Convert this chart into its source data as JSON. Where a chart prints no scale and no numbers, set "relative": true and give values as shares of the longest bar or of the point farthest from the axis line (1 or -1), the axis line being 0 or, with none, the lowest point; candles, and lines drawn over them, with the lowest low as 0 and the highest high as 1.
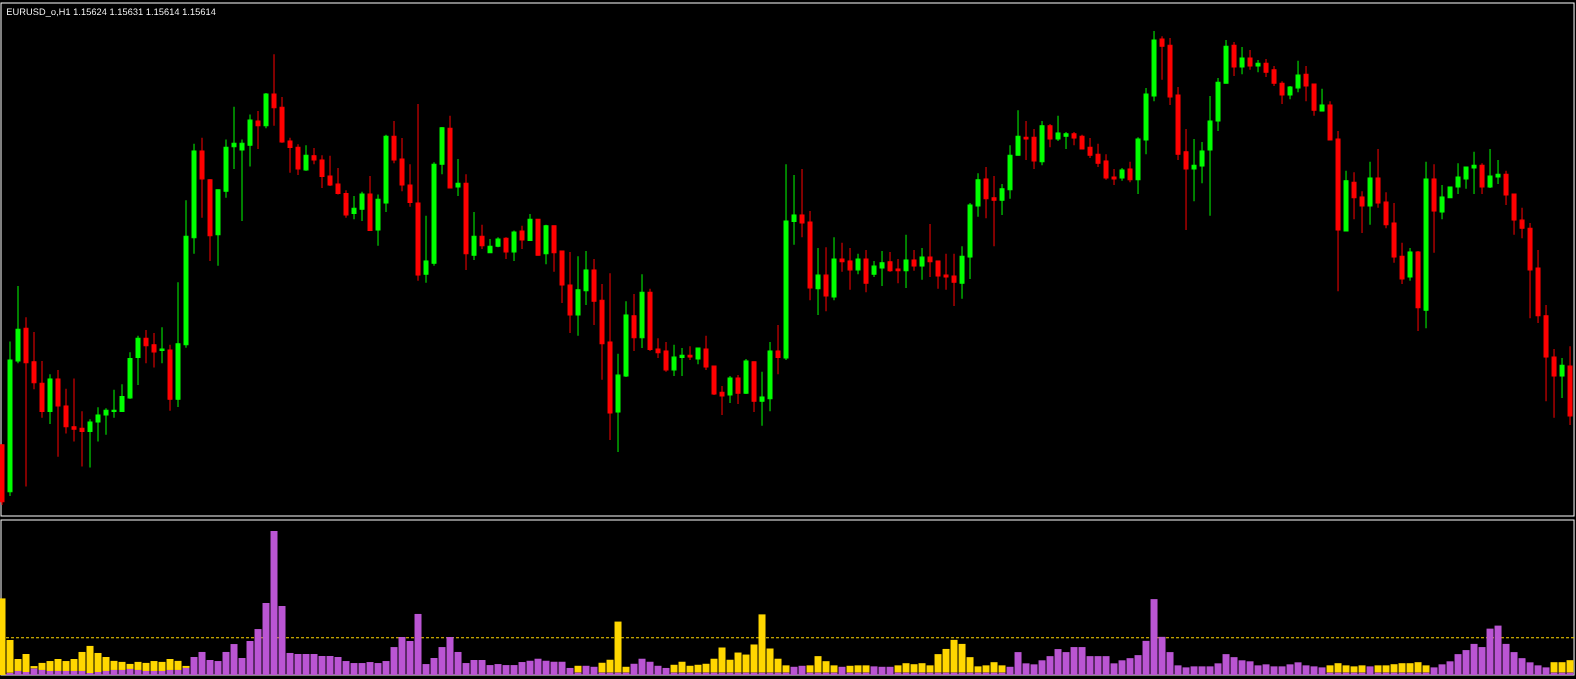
{
  "chart_data": [
    {
      "type": "candlestick",
      "title": "EURUSD_o,H1 1.15624 1.15631 1.15614 1.15614",
      "relative": true,
      "categories": [
        null,
        null,
        null,
        null,
        null,
        null,
        null,
        null,
        null,
        null,
        null,
        null,
        null,
        null,
        null,
        null,
        null,
        null,
        null,
        null,
        null,
        null,
        null,
        null,
        null,
        null,
        null,
        null,
        null,
        null,
        null,
        null,
        null,
        null,
        null,
        null,
        null,
        null,
        null,
        null,
        null,
        null,
        null,
        null,
        null,
        null,
        null,
        null,
        null,
        null,
        null,
        null,
        null,
        null,
        null,
        null,
        null,
        null,
        null,
        null,
        null,
        null,
        null,
        null,
        null,
        null,
        null,
        null,
        null,
        null,
        null,
        null,
        null,
        null,
        null,
        null,
        null,
        null,
        null,
        null,
        null,
        null,
        null,
        null,
        null,
        null,
        null,
        null,
        null,
        null,
        null,
        null,
        null,
        null,
        null,
        null,
        null,
        null,
        null,
        null,
        null,
        null,
        null,
        null,
        null,
        null,
        null,
        null,
        null,
        null,
        null,
        null,
        null,
        null,
        null,
        null,
        null,
        null,
        null,
        null,
        null,
        null,
        null,
        null,
        null,
        null,
        null,
        null,
        null,
        null,
        null,
        null,
        null,
        null,
        null,
        null,
        null,
        null,
        null,
        null,
        null,
        null,
        null,
        null,
        null,
        null,
        null,
        null,
        null,
        null,
        null,
        null,
        null,
        null,
        null,
        null,
        null,
        null,
        null,
        null,
        null,
        null,
        null,
        null,
        null,
        null,
        null,
        null,
        null,
        null,
        null,
        null,
        null,
        null,
        null,
        null,
        null,
        null,
        null,
        null,
        null,
        null,
        null,
        null,
        null,
        null,
        null,
        null,
        null,
        null,
        null,
        null,
        null,
        null,
        null,
        null,
        null
      ],
      "ohlc": [
        [
          0.127,
          0.127,
          0,
          0.007
        ],
        [
          0.028,
          0.345,
          0.019,
          0.306
        ],
        [
          0.304,
          0.462,
          0.299,
          0.371
        ],
        [
          0.373,
          0.396,
          0.039,
          0.3
        ],
        [
          0.302,
          0.365,
          0.244,
          0.258
        ],
        [
          0.257,
          0.304,
          0.184,
          0.197
        ],
        [
          0.197,
          0.276,
          0.171,
          0.266
        ],
        [
          0.266,
          0.285,
          0.102,
          0.209
        ],
        [
          0.209,
          0.245,
          0.151,
          0.165
        ],
        [
          0.165,
          0.267,
          0.134,
          0.16
        ],
        [
          0.162,
          0.198,
          0.081,
          0.155
        ],
        [
          0.155,
          0.181,
          0.079,
          0.175
        ],
        [
          0.175,
          0.206,
          0.134,
          0.19
        ],
        [
          0.19,
          0.204,
          0.148,
          0.2
        ],
        [
          0.197,
          0.243,
          0.184,
          0.2
        ],
        [
          0.197,
          0.255,
          0.196,
          0.229
        ],
        [
          0.226,
          0.322,
          0.224,
          0.309
        ],
        [
          0.311,
          0.357,
          0.253,
          0.352
        ],
        [
          0.352,
          0.369,
          0.299,
          0.336
        ],
        [
          0.338,
          0.363,
          0.29,
          0.323
        ],
        [
          0.326,
          0.375,
          0.299,
          0.329
        ],
        [
          0.327,
          0.338,
          0.199,
          0.223
        ],
        [
          0.223,
          0.47,
          0.207,
          0.34
        ],
        [
          0.338,
          0.643,
          0.332,
          0.567
        ],
        [
          0.564,
          0.762,
          0.53,
          0.747
        ],
        [
          0.747,
          0.775,
          0.606,
          0.688
        ],
        [
          0.686,
          0.687,
          0.515,
          0.568
        ],
        [
          0.57,
          0.665,
          0.505,
          0.665
        ],
        [
          0.662,
          0.771,
          0.648,
          0.755
        ],
        [
          0.756,
          0.84,
          0.709,
          0.763
        ],
        [
          0.749,
          0.771,
          0.599,
          0.763
        ],
        [
          0.759,
          0.824,
          0.714,
          0.812
        ],
        [
          0.81,
          0.831,
          0.751,
          0.8
        ],
        [
          0.8,
          0.869,
          0.795,
          0.867
        ],
        [
          0.867,
          0.951,
          0.8,
          0.838
        ],
        [
          0.839,
          0.861,
          0.764,
          0.766
        ],
        [
          0.768,
          0.775,
          0.701,
          0.754
        ],
        [
          0.755,
          0.761,
          0.696,
          0.709
        ],
        [
          0.707,
          0.759,
          0.705,
          0.738
        ],
        [
          0.737,
          0.753,
          0.719,
          0.728
        ],
        [
          0.728,
          0.738,
          0.669,
          0.693
        ],
        [
          0.694,
          0.737,
          0.673,
          0.675
        ],
        [
          0.677,
          0.711,
          0.655,
          0.657
        ],
        [
          0.657,
          0.664,
          0.606,
          0.612
        ],
        [
          0.615,
          0.652,
          0.603,
          0.626
        ],
        [
          0.624,
          0.661,
          0.599,
          0.656
        ],
        [
          0.656,
          0.694,
          0.578,
          0.579
        ],
        [
          0.58,
          0.655,
          0.547,
          0.645
        ],
        [
          0.637,
          0.781,
          0.618,
          0.778
        ],
        [
          0.778,
          0.81,
          0.721,
          0.728
        ],
        [
          0.73,
          0.774,
          0.662,
          0.675
        ],
        [
          0.675,
          0.719,
          0.629,
          0.638
        ],
        [
          0.637,
          0.846,
          0.473,
          0.485
        ],
        [
          0.487,
          0.61,
          0.469,
          0.515
        ],
        [
          0.51,
          0.723,
          0.505,
          0.719
        ],
        [
          0.719,
          0.797,
          0.698,
          0.796
        ],
        [
          0.795,
          0.821,
          0.669,
          0.669
        ],
        [
          0.671,
          0.73,
          0.652,
          0.679
        ],
        [
          0.679,
          0.698,
          0.496,
          0.53
        ],
        [
          0.527,
          0.618,
          0.517,
          0.567
        ],
        [
          0.567,
          0.591,
          0.54,
          0.547
        ],
        [
          0.532,
          0.561,
          0.532,
          0.546
        ],
        [
          0.546,
          0.565,
          0.544,
          0.561
        ],
        [
          0.563,
          0.565,
          0.519,
          0.534
        ],
        [
          0.534,
          0.579,
          0.515,
          0.576
        ],
        [
          0.578,
          0.589,
          0.54,
          0.559
        ],
        [
          0.558,
          0.614,
          0.558,
          0.603
        ],
        [
          0.603,
          0.603,
          0.527,
          0.527
        ],
        [
          0.53,
          0.591,
          0.508,
          0.589
        ],
        [
          0.589,
          0.589,
          0.492,
          0.532
        ],
        [
          0.536,
          0.536,
          0.426,
          0.464
        ],
        [
          0.464,
          0.534,
          0.363,
          0.401
        ],
        [
          0.401,
          0.525,
          0.357,
          0.454
        ],
        [
          0.452,
          0.536,
          0.422,
          0.496
        ],
        [
          0.496,
          0.519,
          0.38,
          0.43
        ],
        [
          0.432,
          0.466,
          0.264,
          0.34
        ],
        [
          0.344,
          0.489,
          0.137,
          0.194
        ],
        [
          0.196,
          0.319,
          0.112,
          0.274
        ],
        [
          0.272,
          0.43,
          0.27,
          0.401
        ],
        [
          0.399,
          0.445,
          0.325,
          0.353
        ],
        [
          0.353,
          0.487,
          0.331,
          0.449
        ],
        [
          0.449,
          0.456,
          0.325,
          0.328
        ],
        [
          0.329,
          0.352,
          0.31,
          0.321
        ],
        [
          0.325,
          0.344,
          0.281,
          0.285
        ],
        [
          0.285,
          0.338,
          0.272,
          0.312
        ],
        [
          0.311,
          0.331,
          0.272,
          0.316
        ],
        [
          0.316,
          0.335,
          0.306,
          0.312
        ],
        [
          0.308,
          0.331,
          0.297,
          0.331
        ],
        [
          0.329,
          0.357,
          0.285,
          0.291
        ],
        [
          0.293,
          0.293,
          0.232,
          0.234
        ],
        [
          0.238,
          0.251,
          0.19,
          0.23
        ],
        [
          0.232,
          0.272,
          0.215,
          0.268
        ],
        [
          0.268,
          0.274,
          0.213,
          0.236
        ],
        [
          0.236,
          0.308,
          0.234,
          0.304
        ],
        [
          0.302,
          0.302,
          0.196,
          0.219
        ],
        [
          0.219,
          0.281,
          0.167,
          0.228
        ],
        [
          0.224,
          0.344,
          0.198,
          0.325
        ],
        [
          0.325,
          0.38,
          0.276,
          0.311
        ],
        [
          0.31,
          0.719,
          0.306,
          0.599
        ],
        [
          0.598,
          0.696,
          0.549,
          0.612
        ],
        [
          0.612,
          0.709,
          0.565,
          0.595
        ],
        [
          0.597,
          0.62,
          0.432,
          0.458
        ],
        [
          0.456,
          0.542,
          0.401,
          0.485
        ],
        [
          0.485,
          0.544,
          0.409,
          0.441
        ],
        [
          0.439,
          0.565,
          0.432,
          0.519
        ],
        [
          0.519,
          0.553,
          0.492,
          0.513
        ],
        [
          0.515,
          0.542,
          0.454,
          0.496
        ],
        [
          0.496,
          0.53,
          0.487,
          0.519
        ],
        [
          0.519,
          0.538,
          0.449,
          0.468
        ],
        [
          0.487,
          0.515,
          0.481,
          0.504
        ],
        [
          0.5,
          0.536,
          0.462,
          0.511
        ],
        [
          0.513,
          0.534,
          0.492,
          0.494
        ],
        [
          0.498,
          0.519,
          0.468,
          0.494
        ],
        [
          0.494,
          0.57,
          0.458,
          0.517
        ],
        [
          0.517,
          0.538,
          0.494,
          0.504
        ],
        [
          0.504,
          0.542,
          0.475,
          0.523
        ],
        [
          0.523,
          0.593,
          0.481,
          0.513
        ],
        [
          0.515,
          0.515,
          0.456,
          0.483
        ],
        [
          0.485,
          0.53,
          0.454,
          0.481
        ],
        [
          0.483,
          0.53,
          0.42,
          0.47
        ],
        [
          0.468,
          0.546,
          0.435,
          0.525
        ],
        [
          0.523,
          0.637,
          0.477,
          0.633
        ],
        [
          0.631,
          0.7,
          0.608,
          0.686
        ],
        [
          0.688,
          0.713,
          0.605,
          0.646
        ],
        [
          0.648,
          0.694,
          0.546,
          0.643
        ],
        [
          0.643,
          0.677,
          0.612,
          0.667
        ],
        [
          0.665,
          0.759,
          0.646,
          0.738
        ],
        [
          0.738,
          0.833,
          0.738,
          0.778
        ],
        [
          0.776,
          0.81,
          0.728,
          0.772
        ],
        [
          0.776,
          0.793,
          0.709,
          0.726
        ],
        [
          0.724,
          0.81,
          0.717,
          0.8
        ],
        [
          0.8,
          0.804,
          0.755,
          0.772
        ],
        [
          0.772,
          0.821,
          0.768,
          0.785
        ],
        [
          0.778,
          0.787,
          0.751,
          0.783
        ],
        [
          0.783,
          0.787,
          0.759,
          0.774
        ],
        [
          0.778,
          0.781,
          0.751,
          0.751
        ],
        [
          0.755,
          0.774,
          0.732,
          0.738
        ],
        [
          0.74,
          0.762,
          0.713,
          0.721
        ],
        [
          0.726,
          0.74,
          0.686,
          0.69
        ],
        [
          0.692,
          0.709,
          0.675,
          0.688
        ],
        [
          0.69,
          0.711,
          0.684,
          0.707
        ],
        [
          0.709,
          0.724,
          0.681,
          0.686
        ],
        [
          0.686,
          0.776,
          0.656,
          0.772
        ],
        [
          0.77,
          0.88,
          0.74,
          0.867
        ],
        [
          0.863,
          1,
          0.852,
          0.981
        ],
        [
          0.983,
          0.989,
          0.897,
          0.968
        ],
        [
          0.97,
          0.985,
          0.844,
          0.861
        ],
        [
          0.865,
          0.882,
          0.728,
          0.74
        ],
        [
          0.745,
          0.793,
          0.58,
          0.709
        ],
        [
          0.709,
          0.772,
          0.641,
          0.717
        ],
        [
          0.715,
          0.766,
          0.679,
          0.747
        ],
        [
          0.749,
          0.863,
          0.61,
          0.81
        ],
        [
          0.81,
          0.901,
          0.789,
          0.892
        ],
        [
          0.89,
          0.981,
          0.89,
          0.968
        ],
        [
          0.97,
          0.977,
          0.905,
          0.924
        ],
        [
          0.924,
          0.966,
          0.909,
          0.943
        ],
        [
          0.943,
          0.96,
          0.918,
          0.926
        ],
        [
          0.926,
          0.939,
          0.913,
          0.932
        ],
        [
          0.932,
          0.941,
          0.903,
          0.913
        ],
        [
          0.918,
          0.926,
          0.884,
          0.89
        ],
        [
          0.89,
          0.894,
          0.846,
          0.865
        ],
        [
          0.865,
          0.884,
          0.856,
          0.882
        ],
        [
          0.88,
          0.937,
          0.871,
          0.907
        ],
        [
          0.909,
          0.926,
          0.852,
          0.884
        ],
        [
          0.888,
          0.888,
          0.821,
          0.833
        ],
        [
          0.831,
          0.878,
          0.831,
          0.844
        ],
        [
          0.844,
          0.852,
          0.77,
          0.77
        ],
        [
          0.772,
          0.789,
          0.451,
          0.58
        ],
        [
          0.578,
          0.705,
          0.578,
          0.684
        ],
        [
          0.681,
          0.702,
          0.603,
          0.648
        ],
        [
          0.65,
          0.662,
          0.574,
          0.631
        ],
        [
          0.631,
          0.724,
          0.591,
          0.69
        ],
        [
          0.69,
          0.751,
          0.627,
          0.637
        ],
        [
          0.639,
          0.66,
          0.584,
          0.591
        ],
        [
          0.595,
          0.637,
          0.511,
          0.523
        ],
        [
          0.525,
          0.553,
          0.466,
          0.477
        ],
        [
          0.481,
          0.542,
          0.473,
          0.534
        ],
        [
          0.534,
          0.536,
          0.367,
          0.416
        ],
        [
          0.411,
          0.724,
          0.373,
          0.688
        ],
        [
          0.688,
          0.719,
          0.532,
          0.62
        ],
        [
          0.618,
          0.675,
          0.603,
          0.65
        ],
        [
          0.648,
          0.671,
          0.648,
          0.671
        ],
        [
          0.671,
          0.721,
          0.656,
          0.692
        ],
        [
          0.688,
          0.713,
          0.667,
          0.713
        ],
        [
          0.711,
          0.745,
          0.656,
          0.717
        ],
        [
          0.717,
          0.721,
          0.656,
          0.671
        ],
        [
          0.671,
          0.751,
          0.669,
          0.694
        ],
        [
          0.692,
          0.728,
          0.677,
          0.698
        ],
        [
          0.698,
          0.705,
          0.633,
          0.654
        ],
        [
          0.656,
          0.656,
          0.57,
          0.601
        ],
        [
          0.601,
          0.627,
          0.563,
          0.584
        ],
        [
          0.584,
          0.595,
          0.394,
          0.496
        ],
        [
          0.5,
          0.538,
          0.384,
          0.399
        ],
        [
          0.399,
          0.422,
          0.219,
          0.312
        ],
        [
          0.312,
          0.329,
          0.184,
          0.272
        ],
        [
          0.272,
          0.31,
          0.226,
          0.295
        ],
        [
          0.293,
          0.335,
          0.169,
          0.188
        ]
      ],
      "colors": [
        "#ff0000",
        "#00ff00",
        "#00ff00",
        "#ff0000",
        "#ff0000",
        "#ff0000",
        "#00ff00",
        "#ff0000",
        "#ff0000",
        "#ff0000",
        "#ff0000",
        "#00ff00",
        "#00ff00",
        "#00ff00",
        "#00ff00",
        "#00ff00",
        "#00ff00",
        "#00ff00",
        "#ff0000",
        "#ff0000",
        "#00ff00",
        "#ff0000",
        "#00ff00",
        "#00ff00",
        "#00ff00",
        "#ff0000",
        "#ff0000",
        "#00ff00",
        "#00ff00",
        "#00ff00",
        "#00ff00",
        "#00ff00",
        "#ff0000",
        "#00ff00",
        "#ff0000",
        "#ff0000",
        "#ff0000",
        "#ff0000",
        "#00ff00",
        "#ff0000",
        "#ff0000",
        "#ff0000",
        "#ff0000",
        "#ff0000",
        "#00ff00",
        "#00ff00",
        "#ff0000",
        "#00ff00",
        "#00ff00",
        "#ff0000",
        "#ff0000",
        "#ff0000",
        "#ff0000",
        "#00ff00",
        "#00ff00",
        "#00ff00",
        "#ff0000",
        "#00ff00",
        "#ff0000",
        "#00ff00",
        "#ff0000",
        "#00ff00",
        "#00ff00",
        "#ff0000",
        "#00ff00",
        "#ff0000",
        "#00ff00",
        "#ff0000",
        "#00ff00",
        "#ff0000",
        "#ff0000",
        "#ff0000",
        "#00ff00",
        "#00ff00",
        "#ff0000",
        "#ff0000",
        "#ff0000",
        "#00ff00",
        "#00ff00",
        "#ff0000",
        "#00ff00",
        "#ff0000",
        "#ff0000",
        "#ff0000",
        "#00ff00",
        "#00ff00",
        "#ff0000",
        "#00ff00",
        "#ff0000",
        "#ff0000",
        "#ff0000",
        "#00ff00",
        "#ff0000",
        "#00ff00",
        "#ff0000",
        "#00ff00",
        "#00ff00",
        "#ff0000",
        "#00ff00",
        "#00ff00",
        "#ff0000",
        "#ff0000",
        "#00ff00",
        "#ff0000",
        "#00ff00",
        "#ff0000",
        "#ff0000",
        "#00ff00",
        "#ff0000",
        "#00ff00",
        "#00ff00",
        "#ff0000",
        "#ff0000",
        "#00ff00",
        "#ff0000",
        "#00ff00",
        "#ff0000",
        "#ff0000",
        "#ff0000",
        "#ff0000",
        "#00ff00",
        "#00ff00",
        "#00ff00",
        "#ff0000",
        "#ff0000",
        "#00ff00",
        "#00ff00",
        "#00ff00",
        "#ff0000",
        "#ff0000",
        "#00ff00",
        "#ff0000",
        "#00ff00",
        "#00ff00",
        "#ff0000",
        "#ff0000",
        "#ff0000",
        "#ff0000",
        "#ff0000",
        "#ff0000",
        "#00ff00",
        "#ff0000",
        "#00ff00",
        "#00ff00",
        "#00ff00",
        "#ff0000",
        "#ff0000",
        "#ff0000",
        "#ff0000",
        "#00ff00",
        "#00ff00",
        "#00ff00",
        "#00ff00",
        "#00ff00",
        "#ff0000",
        "#00ff00",
        "#ff0000",
        "#00ff00",
        "#ff0000",
        "#ff0000",
        "#ff0000",
        "#00ff00",
        "#00ff00",
        "#ff0000",
        "#ff0000",
        "#00ff00",
        "#ff0000",
        "#ff0000",
        "#00ff00",
        "#ff0000",
        "#ff0000",
        "#00ff00",
        "#ff0000",
        "#ff0000",
        "#ff0000",
        "#ff0000",
        "#00ff00",
        "#ff0000",
        "#00ff00",
        "#ff0000",
        "#00ff00",
        "#00ff00",
        "#00ff00",
        "#00ff00",
        "#00ff00",
        "#ff0000",
        "#00ff00",
        "#00ff00",
        "#ff0000",
        "#ff0000",
        "#ff0000",
        "#ff0000",
        "#ff0000",
        "#ff0000",
        "#ff0000",
        "#00ff00",
        "#ff0000"
      ]
    },
    {
      "type": "bar",
      "relative": true,
      "stacked": true,
      "categories": [
        null,
        null,
        null,
        null,
        null,
        null,
        null,
        null,
        null,
        null,
        null,
        null,
        null,
        null,
        null,
        null,
        null,
        null,
        null,
        null,
        null,
        null,
        null,
        null,
        null,
        null,
        null,
        null,
        null,
        null,
        null,
        null,
        null,
        null,
        null,
        null,
        null,
        null,
        null,
        null,
        null,
        null,
        null,
        null,
        null,
        null,
        null,
        null,
        null,
        null,
        null,
        null,
        null,
        null,
        null,
        null,
        null,
        null,
        null,
        null,
        null,
        null,
        null,
        null,
        null,
        null,
        null,
        null,
        null,
        null,
        null,
        null,
        null,
        null,
        null,
        null,
        null,
        null,
        null,
        null,
        null,
        null,
        null,
        null,
        null,
        null,
        null,
        null,
        null,
        null,
        null,
        null,
        null,
        null,
        null,
        null,
        null,
        null,
        null,
        null,
        null,
        null,
        null,
        null,
        null,
        null,
        null,
        null,
        null,
        null,
        null,
        null,
        null,
        null,
        null,
        null,
        null,
        null,
        null,
        null,
        null,
        null,
        null,
        null,
        null,
        null,
        null,
        null,
        null,
        null,
        null,
        null,
        null,
        null,
        null,
        null,
        null,
        null,
        null,
        null,
        null,
        null,
        null,
        null,
        null,
        null,
        null,
        null,
        null,
        null,
        null,
        null,
        null,
        null,
        null,
        null,
        null,
        null,
        null,
        null,
        null,
        null,
        null,
        null,
        null,
        null,
        null,
        null,
        null,
        null,
        null,
        null,
        null,
        null,
        null,
        null,
        null,
        null,
        null,
        null,
        null,
        null,
        null,
        null,
        null,
        null,
        null,
        null,
        null,
        null,
        null,
        null,
        null,
        null,
        null,
        null,
        null
      ],
      "series": [
        {
          "color": "#ba55d3",
          "values": [
            null,
            0.016,
            0.028,
            0.021,
            0.046,
            0.035,
            0.028,
            0.028,
            0.028,
            0.028,
            0.028,
            0.014,
            0.021,
            0.028,
            0.035,
            0.035,
            0.042,
            0.035,
            0.028,
            0.028,
            0.028,
            0.035,
            0.035,
            0.049,
            0.125,
            0.16,
            0.104,
            0.097,
            0.16,
            0.215,
            0.118,
            0.236,
            0.319,
            0.5,
            1,
            0.479,
            0.153,
            0.146,
            0.146,
            0.146,
            0.132,
            0.132,
            0.125,
            0.097,
            0.083,
            0.083,
            0.09,
            0.083,
            0.097,
            0.194,
            0.264,
            0.236,
            0.424,
            0.076,
            0.118,
            0.194,
            0.264,
            0.16,
            0.083,
            0.104,
            0.104,
            0.069,
            0.076,
            0.069,
            0.069,
            0.09,
            0.099,
            0.113,
            0.099,
            0.092,
            0.092,
            0.049,
            0.018,
            0.064,
            0.057,
            0.018,
            0.018,
            0.018,
            0.018,
            0.078,
            0.113,
            0.092,
            0.064,
            0.049,
            0.018,
            0.018,
            0.018,
            0.018,
            0.018,
            0.018,
            0.018,
            0.018,
            0.018,
            0.018,
            0.018,
            0.018,
            0.018,
            0.018,
            0.018,
            0.057,
            0.064,
            0.018,
            0.018,
            0.018,
            0.018,
            0.057,
            0.018,
            0.018,
            0.018,
            0.06,
            0.057,
            0.057,
            0.018,
            0.018,
            0.018,
            0.018,
            0.018,
            0.018,
            0.018,
            0.018,
            0.018,
            0.018,
            0.018,
            0.018,
            0.018,
            0.018,
            0.057,
            0.159,
            0.081,
            0.074,
            0.102,
            0.131,
            0.18,
            0.159,
            0.194,
            0.194,
            0.131,
            0.131,
            0.131,
            0.081,
            0.102,
            0.117,
            0.138,
            0.237,
            0.527,
            0.265,
            0.159,
            0.067,
            0.053,
            0.06,
            0.06,
            0.06,
            0.081,
            0.145,
            0.124,
            0.102,
            0.095,
            0.067,
            0.074,
            0.06,
            0.06,
            0.074,
            0.088,
            0.067,
            0.06,
            0.053,
            0.018,
            0.018,
            0.018,
            0.018,
            0.018,
            0.06,
            0.018,
            0.018,
            0.018,
            0.018,
            0.018,
            0.018,
            0.018,
            0.053,
            0.074,
            0.095,
            0.145,
            0.173,
            0.216,
            0.194,
            0.322,
            0.343,
            0.216,
            0.159,
            0.117,
            0.088,
            0.067,
            0.053,
            0.018,
            0.018,
            0.018
          ]
        },
        {
          "color": "#ffd700",
          "values": [
            0.532,
            0.227,
            0.083,
            0.125,
            0.016,
            0.049,
            0.069,
            0.083,
            0.069,
            0.083,
            0.132,
            0.188,
            0.132,
            0.097,
            0.063,
            0.056,
            0.035,
            0.056,
            0.056,
            0.069,
            0.063,
            0.076,
            0.063,
            0.014,
            null,
            null,
            null,
            null,
            null,
            null,
            null,
            null,
            null,
            null,
            null,
            null,
            null,
            null,
            null,
            null,
            null,
            null,
            null,
            null,
            null,
            null,
            null,
            null,
            null,
            null,
            null,
            null,
            null,
            null,
            null,
            null,
            null,
            null,
            null,
            null,
            null,
            null,
            null,
            null,
            null,
            null,
            null,
            null,
            null,
            null,
            null,
            null,
            0.046,
            null,
            null,
            0.067,
            0.088,
            0.353,
            0.039,
            null,
            null,
            null,
            null,
            null,
            0.053,
            0.074,
            0.046,
            0.053,
            0.06,
            0.095,
            0.173,
            0.088,
            0.138,
            0.124,
            0.194,
            0.403,
            0.166,
            0.095,
            0.049,
            null,
            null,
            0.049,
            0.113,
            0.078,
            0.049,
            null,
            0.046,
            0.049,
            0.049,
            null,
            null,
            null,
            0.049,
            0.064,
            0.057,
            0.064,
            0.049,
            0.127,
            0.163,
            0.226,
            0.198,
            0.106,
            0.042,
            0.049,
            0.071,
            0.049,
            null,
            null,
            null,
            null,
            null,
            null,
            null,
            null,
            null,
            null,
            null,
            null,
            null,
            null,
            null,
            null,
            null,
            null,
            null,
            null,
            null,
            null,
            null,
            null,
            null,
            null,
            null,
            null,
            null,
            null,
            null,
            null,
            null,
            null,
            null,
            null,
            null,
            null,
            null,
            null,
            0.049,
            0.064,
            0.049,
            0.042,
            0.049,
            null,
            0.049,
            0.049,
            0.057,
            0.064,
            0.064,
            0.071,
            0.049,
            null,
            null,
            null,
            null,
            null,
            null,
            null,
            null,
            null,
            null,
            null,
            null,
            null,
            null,
            null,
            0.071,
            0.071,
            0.085
          ]
        }
      ],
      "ref_lines": [
        {
          "axis": "y",
          "value": 0.259,
          "color": "#ffd700",
          "line_style": "dashed"
        }
      ]
    }
  ]
}
